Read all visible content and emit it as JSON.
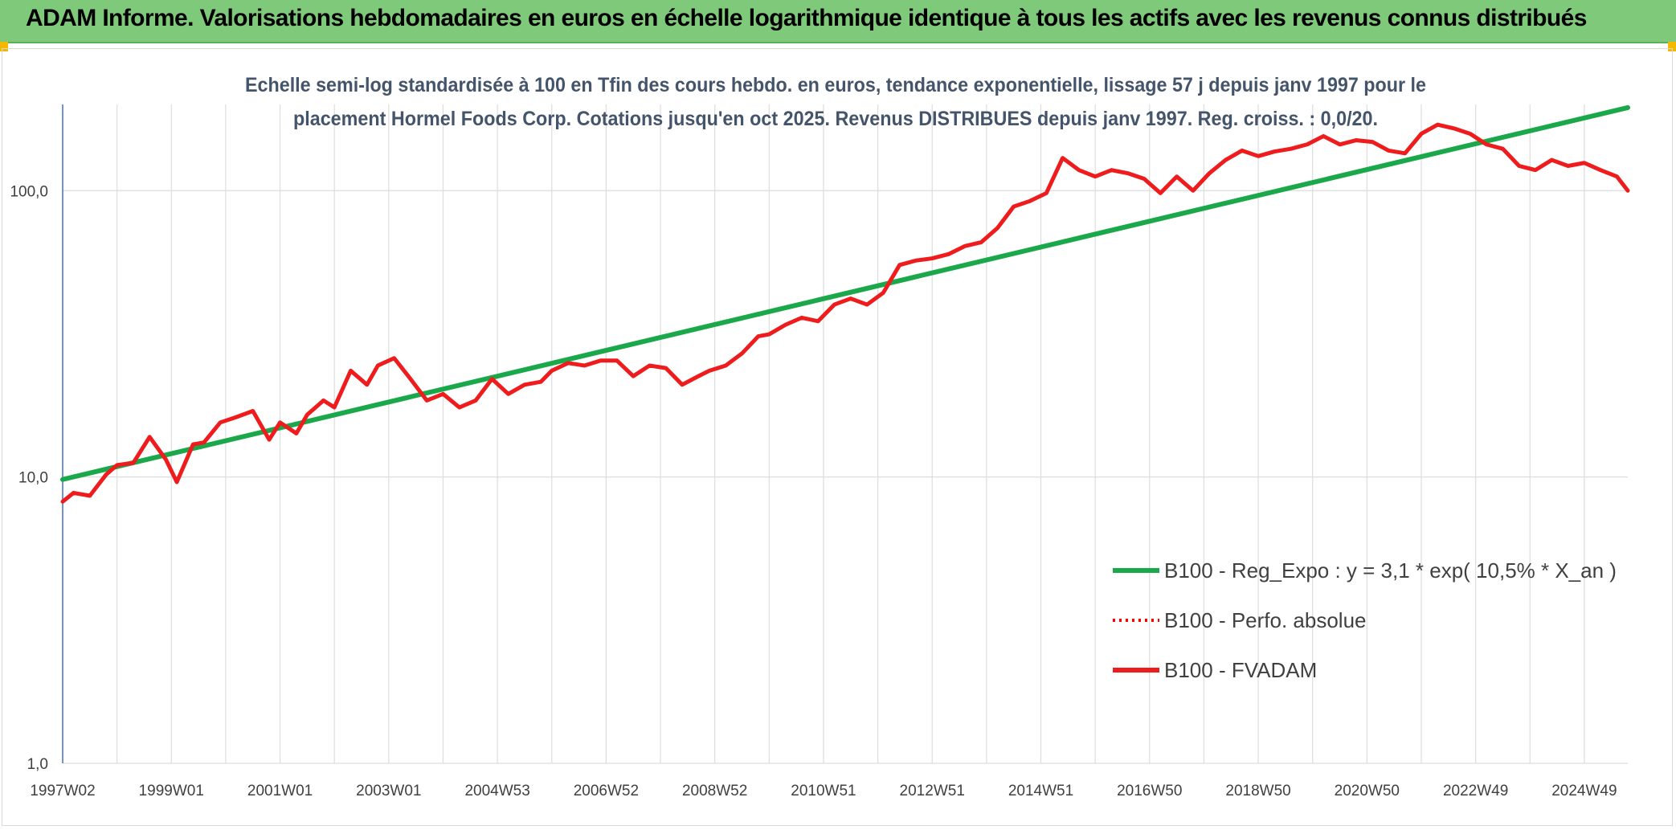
{
  "header": {
    "title": "ADAM Informe. Valorisations hebdomadaires en euros en échelle logarithmique identique à tous les actifs avec les revenus connus distribués"
  },
  "colors": {
    "header_bg": "#7fc97a",
    "trend": "#1aa84a",
    "perf": "#ff0000",
    "fvadam": "#ee1c1c",
    "grid": "#dddddd"
  },
  "chart_data": {
    "type": "line",
    "title_lines": [
      "Echelle semi-log standardisée à 100 en Tfin des cours hebdo. en euros, tendance exponentielle, lissage 57 j depuis janv 1997 pour le",
      "placement Hormel Foods Corp. Cotations jusqu'en oct 2025. Revenus DISTRIBUES depuis janv 1997. Reg. croiss. : 0,0/20."
    ],
    "y_scale": "log",
    "ylim": [
      1,
      200
    ],
    "y_ticks": [
      {
        "value": 1,
        "label": "1,0"
      },
      {
        "value": 10,
        "label": "10,0"
      },
      {
        "value": 100,
        "label": "100,0"
      }
    ],
    "xlim": [
      1997.0,
      2025.8
    ],
    "x_ticks": [
      {
        "x": 1997.0,
        "label": "1997W02"
      },
      {
        "x": 1999.0,
        "label": "1999W01"
      },
      {
        "x": 2001.0,
        "label": "2001W01"
      },
      {
        "x": 2003.0,
        "label": "2003W01"
      },
      {
        "x": 2005.0,
        "label": "2004W53"
      },
      {
        "x": 2007.0,
        "label": "2006W52"
      },
      {
        "x": 2009.0,
        "label": "2008W52"
      },
      {
        "x": 2011.0,
        "label": "2010W51"
      },
      {
        "x": 2013.0,
        "label": "2012W51"
      },
      {
        "x": 2015.0,
        "label": "2014W51"
      },
      {
        "x": 2017.0,
        "label": "2016W50"
      },
      {
        "x": 2019.0,
        "label": "2018W50"
      },
      {
        "x": 2021.0,
        "label": "2020W50"
      },
      {
        "x": 2023.0,
        "label": "2022W49"
      },
      {
        "x": 2025.0,
        "label": "2024W49"
      }
    ],
    "vertical_gridlines_x": [
      1997.0,
      1998.0,
      1999.0,
      2000.0,
      2001.0,
      2002.0,
      2003.0,
      2004.0,
      2005.0,
      2006.0,
      2007.0,
      2008.0,
      2009.0,
      2010.0,
      2011.0,
      2012.0,
      2013.0,
      2014.0,
      2015.0,
      2016.0,
      2017.0,
      2018.0,
      2019.0,
      2020.0,
      2021.0,
      2022.0,
      2023.0,
      2024.0,
      2025.0
    ],
    "legend": [
      {
        "label": "B100 - Reg_Expo : y = 3,1 * exp( 10,5% *  X_an )",
        "style": "solid",
        "color": "#1aa84a"
      },
      {
        "label": "B100 - Perfo. absolue",
        "style": "dotted",
        "color": "#ff0000"
      },
      {
        "label": "B100 - FVADAM",
        "style": "solid",
        "color": "#ee1c1c"
      }
    ],
    "legend_position": "bottom-right",
    "series": [
      {
        "name": "B100 - Reg_Expo : y = 3,1 * exp( 10,5% *  X_an )",
        "color": "#1aa84a",
        "x": [
          1997.0,
          2025.8
        ],
        "y": [
          9.8,
          195
        ]
      },
      {
        "name": "B100 - FVADAM",
        "color": "#ee1c1c",
        "x": [
          1997.0,
          1997.2,
          1997.5,
          1997.8,
          1998.0,
          1998.3,
          1998.6,
          1998.9,
          1999.1,
          1999.4,
          1999.6,
          1999.9,
          2000.2,
          2000.5,
          2000.8,
          2001.0,
          2001.3,
          2001.5,
          2001.8,
          2002.0,
          2002.3,
          2002.6,
          2002.8,
          2003.1,
          2003.4,
          2003.7,
          2004.0,
          2004.3,
          2004.6,
          2004.9,
          2005.2,
          2005.5,
          2005.8,
          2006.0,
          2006.3,
          2006.6,
          2006.9,
          2007.2,
          2007.5,
          2007.8,
          2008.1,
          2008.4,
          2008.7,
          2008.9,
          2009.2,
          2009.5,
          2009.8,
          2010.0,
          2010.3,
          2010.6,
          2010.9,
          2011.2,
          2011.5,
          2011.8,
          2012.1,
          2012.4,
          2012.7,
          2013.0,
          2013.3,
          2013.6,
          2013.9,
          2014.2,
          2014.5,
          2014.8,
          2015.1,
          2015.4,
          2015.7,
          2016.0,
          2016.3,
          2016.6,
          2016.9,
          2017.2,
          2017.5,
          2017.8,
          2018.1,
          2018.4,
          2018.7,
          2019.0,
          2019.3,
          2019.6,
          2019.9,
          2020.2,
          2020.5,
          2020.8,
          2021.1,
          2021.4,
          2021.7,
          2022.0,
          2022.3,
          2022.6,
          2022.9,
          2023.2,
          2023.5,
          2023.8,
          2024.1,
          2024.4,
          2024.7,
          2025.0,
          2025.3,
          2025.6,
          2025.8
        ],
        "y": [
          8.2,
          8.8,
          8.6,
          10.2,
          11.0,
          11.2,
          13.8,
          11.5,
          9.6,
          13.0,
          13.2,
          15.5,
          16.2,
          17.0,
          13.5,
          15.5,
          14.2,
          16.5,
          18.5,
          17.5,
          23.5,
          21.0,
          24.5,
          26.0,
          22.0,
          18.5,
          19.5,
          17.5,
          18.5,
          22.0,
          19.5,
          21.0,
          21.5,
          23.5,
          25.0,
          24.5,
          25.5,
          25.5,
          22.5,
          24.5,
          24.0,
          21.0,
          22.5,
          23.5,
          24.5,
          27.0,
          31.0,
          31.5,
          34.0,
          36.0,
          35.0,
          40.0,
          42.0,
          40.0,
          44.0,
          55.0,
          57.0,
          58.0,
          60.0,
          64.0,
          66.0,
          74.0,
          88.0,
          92.0,
          98.0,
          130.0,
          118.0,
          112.0,
          118.0,
          115.0,
          110.0,
          98.0,
          112.0,
          100.0,
          115.0,
          128.0,
          138.0,
          132.0,
          137.0,
          140.0,
          145.0,
          155.0,
          145.0,
          150.0,
          148.0,
          138.0,
          135.0,
          158.0,
          170.0,
          165.0,
          158.0,
          145.0,
          140.0,
          122.0,
          118.0,
          128.0,
          122.0,
          125.0,
          118.0,
          112.0,
          100.0
        ]
      }
    ]
  }
}
